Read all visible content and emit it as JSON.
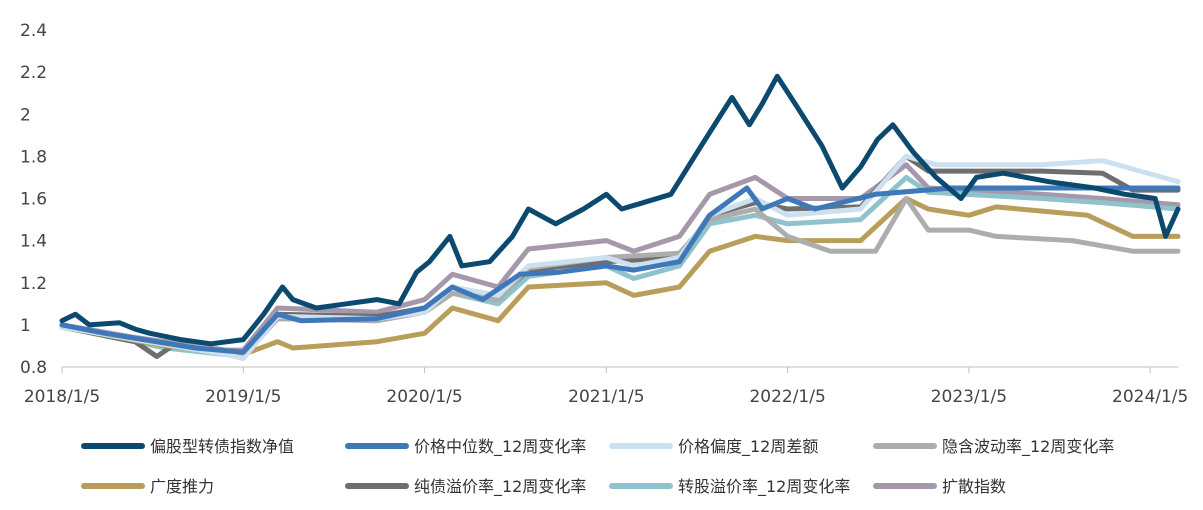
{
  "chart_data": {
    "type": "line",
    "title": "",
    "xlabel": "",
    "ylabel": "",
    "ylim": [
      0.8,
      2.4
    ],
    "yticks": [
      "0.8",
      "1",
      "1.2",
      "1.4",
      "1.6",
      "1.8",
      "2",
      "2.2",
      "2.4"
    ],
    "xticks": [
      "2018/1/5",
      "2019/1/5",
      "2020/1/5",
      "2021/1/5",
      "2022/1/5",
      "2023/1/5",
      "2024/1/5"
    ],
    "x_range": [
      "2018-01-05",
      "2024-03-01"
    ],
    "grid": false,
    "legend_position": "bottom",
    "series": [
      {
        "name": "偏股型转债指数净值",
        "color": "#0b4a6e",
        "points": [
          [
            "2018-01-05",
            1.02
          ],
          [
            "2018-02-01",
            1.05
          ],
          [
            "2018-03-01",
            1.0
          ],
          [
            "2018-05-01",
            1.01
          ],
          [
            "2018-06-01",
            0.98
          ],
          [
            "2018-07-01",
            0.96
          ],
          [
            "2018-09-01",
            0.93
          ],
          [
            "2018-11-01",
            0.91
          ],
          [
            "2019-01-05",
            0.93
          ],
          [
            "2019-02-15",
            1.05
          ],
          [
            "2019-03-10",
            1.13
          ],
          [
            "2019-03-25",
            1.18
          ],
          [
            "2019-04-15",
            1.12
          ],
          [
            "2019-06-01",
            1.08
          ],
          [
            "2019-08-01",
            1.1
          ],
          [
            "2019-10-01",
            1.12
          ],
          [
            "2019-11-15",
            1.1
          ],
          [
            "2019-12-20",
            1.25
          ],
          [
            "2020-01-15",
            1.3
          ],
          [
            "2020-02-25",
            1.42
          ],
          [
            "2020-03-20",
            1.28
          ],
          [
            "2020-05-15",
            1.3
          ],
          [
            "2020-06-30",
            1.42
          ],
          [
            "2020-08-01",
            1.55
          ],
          [
            "2020-09-25",
            1.48
          ],
          [
            "2020-11-20",
            1.55
          ],
          [
            "2021-01-05",
            1.62
          ],
          [
            "2021-02-05",
            1.55
          ],
          [
            "2021-03-20",
            1.58
          ],
          [
            "2021-05-15",
            1.62
          ],
          [
            "2021-07-15",
            1.85
          ],
          [
            "2021-09-15",
            2.08
          ],
          [
            "2021-10-20",
            1.95
          ],
          [
            "2021-11-15",
            2.05
          ],
          [
            "2021-12-15",
            2.18
          ],
          [
            "2022-01-20",
            2.05
          ],
          [
            "2022-03-15",
            1.85
          ],
          [
            "2022-04-25",
            1.65
          ],
          [
            "2022-06-01",
            1.75
          ],
          [
            "2022-07-05",
            1.88
          ],
          [
            "2022-08-05",
            1.95
          ],
          [
            "2022-09-15",
            1.82
          ],
          [
            "2022-10-31",
            1.7
          ],
          [
            "2022-12-20",
            1.6
          ],
          [
            "2023-01-20",
            1.7
          ],
          [
            "2023-03-15",
            1.72
          ],
          [
            "2023-06-15",
            1.68
          ],
          [
            "2023-09-15",
            1.65
          ],
          [
            "2023-11-15",
            1.62
          ],
          [
            "2024-01-15",
            1.6
          ],
          [
            "2024-02-05",
            1.42
          ],
          [
            "2024-03-01",
            1.55
          ]
        ]
      },
      {
        "name": "价格中位数_12周变化率",
        "color": "#3f78b8",
        "points": [
          [
            "2018-01-05",
            1.0
          ],
          [
            "2018-04-01",
            0.96
          ],
          [
            "2018-10-01",
            0.89
          ],
          [
            "2019-01-05",
            0.87
          ],
          [
            "2019-03-15",
            1.05
          ],
          [
            "2019-05-01",
            1.02
          ],
          [
            "2019-10-01",
            1.03
          ],
          [
            "2020-01-05",
            1.08
          ],
          [
            "2020-03-01",
            1.18
          ],
          [
            "2020-05-01",
            1.12
          ],
          [
            "2020-07-15",
            1.24
          ],
          [
            "2020-10-01",
            1.25
          ],
          [
            "2021-01-05",
            1.28
          ],
          [
            "2021-03-01",
            1.26
          ],
          [
            "2021-06-01",
            1.3
          ],
          [
            "2021-08-01",
            1.52
          ],
          [
            "2021-10-15",
            1.65
          ],
          [
            "2021-11-15",
            1.55
          ],
          [
            "2022-01-05",
            1.6
          ],
          [
            "2022-03-01",
            1.55
          ],
          [
            "2022-07-01",
            1.62
          ],
          [
            "2022-12-01",
            1.65
          ],
          [
            "2024-03-01",
            1.65
          ]
        ]
      },
      {
        "name": "价格偏度_12周差额",
        "color": "#cde0f0",
        "points": [
          [
            "2018-01-05",
            0.99
          ],
          [
            "2018-06-01",
            0.93
          ],
          [
            "2018-12-01",
            0.86
          ],
          [
            "2019-01-05",
            0.84
          ],
          [
            "2019-03-15",
            1.04
          ],
          [
            "2019-10-01",
            1.03
          ],
          [
            "2020-01-05",
            1.06
          ],
          [
            "2020-03-01",
            1.18
          ],
          [
            "2020-06-01",
            1.14
          ],
          [
            "2020-08-01",
            1.28
          ],
          [
            "2021-01-05",
            1.32
          ],
          [
            "2021-03-01",
            1.28
          ],
          [
            "2021-06-01",
            1.32
          ],
          [
            "2021-08-01",
            1.52
          ],
          [
            "2021-11-01",
            1.6
          ],
          [
            "2022-01-05",
            1.52
          ],
          [
            "2022-06-01",
            1.55
          ],
          [
            "2022-09-01",
            1.8
          ],
          [
            "2022-11-01",
            1.76
          ],
          [
            "2023-06-01",
            1.76
          ],
          [
            "2023-10-01",
            1.78
          ],
          [
            "2024-03-01",
            1.68
          ]
        ]
      },
      {
        "name": "隐含波动率_12周变化率",
        "color": "#adadad",
        "points": [
          [
            "2018-01-05",
            0.99
          ],
          [
            "2018-08-01",
            0.91
          ],
          [
            "2019-01-05",
            0.87
          ],
          [
            "2019-03-15",
            1.03
          ],
          [
            "2019-10-01",
            1.02
          ],
          [
            "2020-01-05",
            1.06
          ],
          [
            "2020-03-01",
            1.15
          ],
          [
            "2020-06-01",
            1.12
          ],
          [
            "2020-08-01",
            1.27
          ],
          [
            "2021-01-05",
            1.32
          ],
          [
            "2021-06-01",
            1.34
          ],
          [
            "2021-08-01",
            1.5
          ],
          [
            "2021-11-01",
            1.55
          ],
          [
            "2022-01-05",
            1.42
          ],
          [
            "2022-04-01",
            1.35
          ],
          [
            "2022-07-01",
            1.35
          ],
          [
            "2022-09-01",
            1.6
          ],
          [
            "2022-10-15",
            1.45
          ],
          [
            "2023-01-05",
            1.45
          ],
          [
            "2023-03-01",
            1.42
          ],
          [
            "2023-08-01",
            1.4
          ],
          [
            "2023-12-01",
            1.35
          ],
          [
            "2024-03-01",
            1.35
          ]
        ]
      },
      {
        "name": "广度推力",
        "color": "#b99d5a",
        "points": [
          [
            "2018-01-05",
            0.99
          ],
          [
            "2018-08-01",
            0.9
          ],
          [
            "2019-01-05",
            0.86
          ],
          [
            "2019-03-15",
            0.92
          ],
          [
            "2019-04-15",
            0.89
          ],
          [
            "2019-10-01",
            0.92
          ],
          [
            "2020-01-05",
            0.96
          ],
          [
            "2020-03-01",
            1.08
          ],
          [
            "2020-06-01",
            1.02
          ],
          [
            "2020-08-01",
            1.18
          ],
          [
            "2021-01-05",
            1.2
          ],
          [
            "2021-03-01",
            1.14
          ],
          [
            "2021-06-01",
            1.18
          ],
          [
            "2021-08-01",
            1.35
          ],
          [
            "2021-11-01",
            1.42
          ],
          [
            "2022-01-05",
            1.4
          ],
          [
            "2022-06-01",
            1.4
          ],
          [
            "2022-09-01",
            1.6
          ],
          [
            "2022-10-15",
            1.55
          ],
          [
            "2023-01-05",
            1.52
          ],
          [
            "2023-03-01",
            1.56
          ],
          [
            "2023-09-01",
            1.52
          ],
          [
            "2023-12-01",
            1.42
          ],
          [
            "2024-03-01",
            1.42
          ]
        ]
      },
      {
        "name": "纯债溢价率_12周变化率",
        "color": "#6e6e6e",
        "points": [
          [
            "2018-01-05",
            0.99
          ],
          [
            "2018-06-01",
            0.92
          ],
          [
            "2018-07-15",
            0.85
          ],
          [
            "2018-08-15",
            0.9
          ],
          [
            "2019-01-05",
            0.87
          ],
          [
            "2019-03-15",
            1.05
          ],
          [
            "2019-10-01",
            1.04
          ],
          [
            "2020-01-05",
            1.08
          ],
          [
            "2020-03-01",
            1.18
          ],
          [
            "2020-06-01",
            1.13
          ],
          [
            "2020-08-01",
            1.26
          ],
          [
            "2021-01-05",
            1.3
          ],
          [
            "2021-06-01",
            1.32
          ],
          [
            "2021-08-01",
            1.52
          ],
          [
            "2021-11-01",
            1.58
          ],
          [
            "2022-01-05",
            1.55
          ],
          [
            "2022-06-01",
            1.56
          ],
          [
            "2022-09-01",
            1.8
          ],
          [
            "2022-10-15",
            1.73
          ],
          [
            "2023-06-01",
            1.73
          ],
          [
            "2023-10-01",
            1.72
          ],
          [
            "2023-12-01",
            1.64
          ],
          [
            "2024-03-01",
            1.64
          ]
        ]
      },
      {
        "name": "转股溢价率_12周变化率",
        "color": "#8fc3cc",
        "points": [
          [
            "2018-01-05",
            0.99
          ],
          [
            "2018-08-01",
            0.89
          ],
          [
            "2019-01-05",
            0.85
          ],
          [
            "2019-03-15",
            1.03
          ],
          [
            "2019-10-01",
            1.02
          ],
          [
            "2020-01-05",
            1.06
          ],
          [
            "2020-03-01",
            1.15
          ],
          [
            "2020-06-01",
            1.1
          ],
          [
            "2020-08-01",
            1.23
          ],
          [
            "2021-01-05",
            1.28
          ],
          [
            "2021-03-01",
            1.22
          ],
          [
            "2021-06-01",
            1.28
          ],
          [
            "2021-08-01",
            1.48
          ],
          [
            "2021-11-01",
            1.52
          ],
          [
            "2022-01-05",
            1.48
          ],
          [
            "2022-06-01",
            1.5
          ],
          [
            "2022-09-01",
            1.7
          ],
          [
            "2022-10-15",
            1.63
          ],
          [
            "2023-06-01",
            1.6
          ],
          [
            "2023-10-01",
            1.58
          ],
          [
            "2024-03-01",
            1.55
          ]
        ]
      },
      {
        "name": "扩散指数",
        "color": "#a598ab",
        "points": [
          [
            "2018-01-05",
            1.0
          ],
          [
            "2018-06-01",
            0.94
          ],
          [
            "2018-12-01",
            0.88
          ],
          [
            "2019-01-05",
            0.88
          ],
          [
            "2019-03-15",
            1.08
          ],
          [
            "2019-10-01",
            1.06
          ],
          [
            "2020-01-05",
            1.12
          ],
          [
            "2020-03-01",
            1.24
          ],
          [
            "2020-06-01",
            1.18
          ],
          [
            "2020-08-01",
            1.36
          ],
          [
            "2021-01-05",
            1.4
          ],
          [
            "2021-03-01",
            1.35
          ],
          [
            "2021-06-01",
            1.42
          ],
          [
            "2021-08-01",
            1.62
          ],
          [
            "2021-11-01",
            1.7
          ],
          [
            "2022-01-05",
            1.6
          ],
          [
            "2022-06-01",
            1.6
          ],
          [
            "2022-09-01",
            1.76
          ],
          [
            "2022-10-15",
            1.65
          ],
          [
            "2023-06-01",
            1.62
          ],
          [
            "2023-10-01",
            1.6
          ],
          [
            "2024-03-01",
            1.57
          ]
        ]
      }
    ]
  }
}
